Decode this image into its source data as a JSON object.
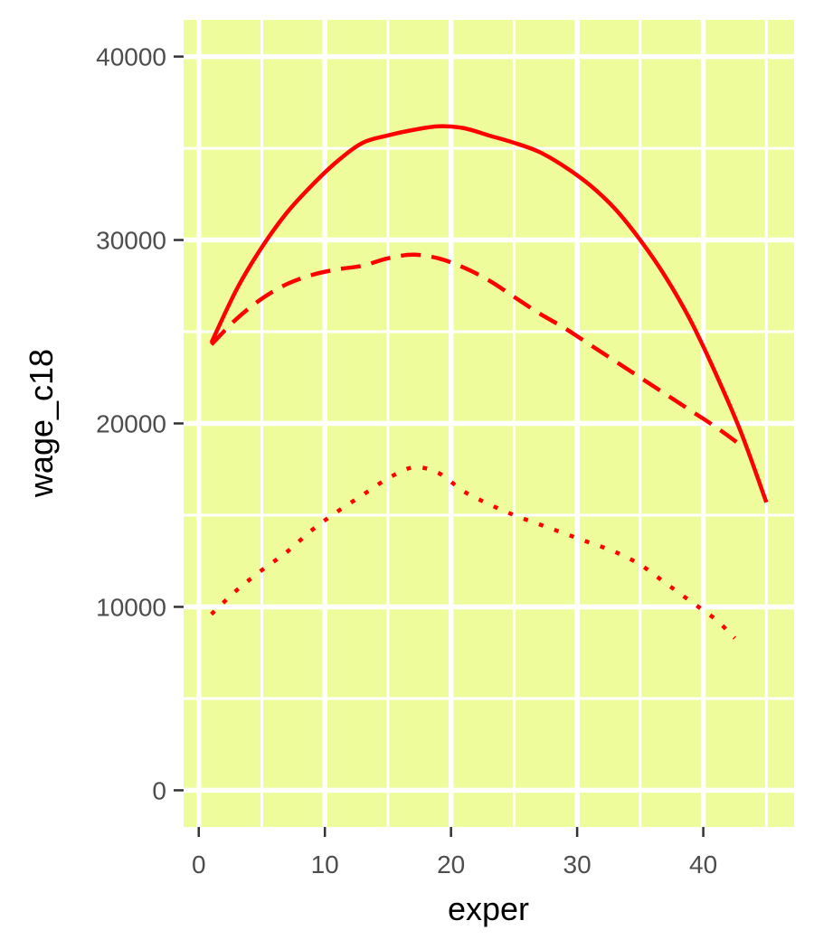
{
  "colors": {
    "panel_background": "#eefc9c",
    "grid": "#ffffff",
    "line": "#ff0000",
    "tick_mark": "#333333",
    "tick_text": "#4d4d4d",
    "axis_title": "#000000"
  },
  "chart_data": {
    "type": "line",
    "xlabel": "exper",
    "ylabel": "wage_c18",
    "xlim": [
      -1.2,
      47.2
    ],
    "ylim": [
      -2000,
      42000
    ],
    "x_ticks": [
      0,
      10,
      20,
      30,
      40
    ],
    "y_ticks": [
      0,
      10000,
      20000,
      30000,
      40000
    ],
    "x_tick_labels": [
      "0",
      "10",
      "20",
      "30",
      "40"
    ],
    "y_tick_labels": [
      "0",
      "10000",
      "20000",
      "30000",
      "40000"
    ],
    "grid": true,
    "legend": "none",
    "series": [
      {
        "linetype": "solid",
        "x": [
          1,
          3,
          5,
          7,
          9,
          11,
          13,
          15,
          17,
          19,
          21,
          23,
          25,
          27,
          29,
          31,
          33,
          35,
          37,
          39,
          41,
          43,
          45
        ],
        "y": [
          24400,
          27300,
          29600,
          31500,
          33000,
          34300,
          35300,
          35700,
          36000,
          36200,
          36100,
          35700,
          35300,
          34800,
          34000,
          33000,
          31700,
          30000,
          28000,
          25600,
          22700,
          19500,
          15700
        ]
      },
      {
        "linetype": "dashed",
        "x": [
          1,
          3,
          5,
          7,
          9,
          11,
          13,
          15,
          17,
          19,
          21,
          23,
          25,
          27,
          29,
          31,
          33,
          35,
          37,
          39,
          41,
          43
        ],
        "y": [
          24300,
          25700,
          26800,
          27600,
          28100,
          28400,
          28600,
          29000,
          29200,
          29000,
          28500,
          27800,
          26900,
          26000,
          25200,
          24300,
          23400,
          22500,
          21600,
          20700,
          19800,
          18800
        ]
      },
      {
        "linetype": "dotted",
        "x": [
          1,
          3,
          5,
          7,
          9,
          11,
          13,
          15,
          17,
          19,
          21,
          23,
          25,
          27,
          29,
          31,
          33,
          35,
          37,
          39,
          41,
          42.5
        ],
        "y": [
          9600,
          10900,
          12000,
          13000,
          14200,
          15200,
          16100,
          17000,
          17600,
          17300,
          16300,
          15600,
          15000,
          14500,
          14000,
          13500,
          13000,
          12300,
          11300,
          10300,
          9300,
          8300
        ]
      }
    ]
  }
}
